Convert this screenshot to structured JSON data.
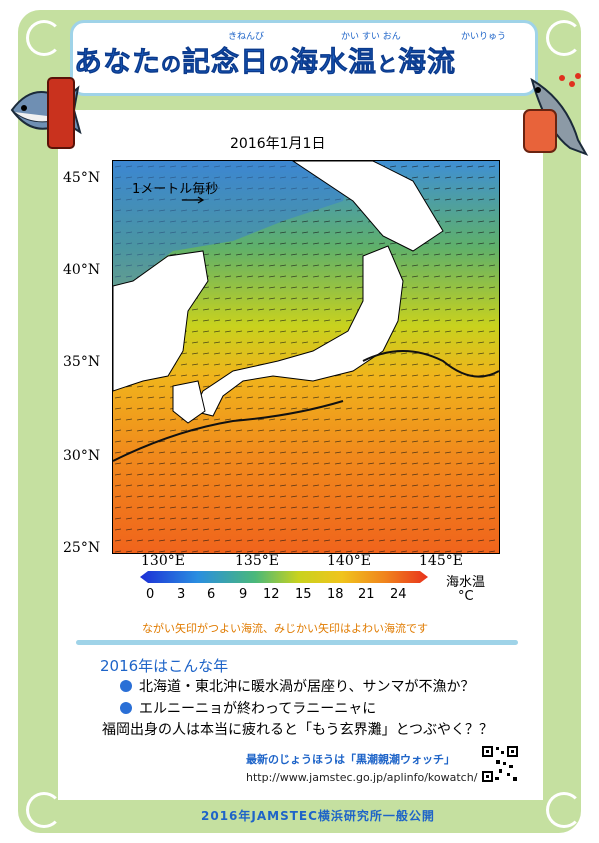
{
  "header": {
    "title_parts": [
      "あなた",
      "の",
      "記念日",
      "の",
      "海水温",
      "と",
      "海流"
    ],
    "ruby": [
      "きねんび",
      "かい すい おん",
      "かいりゅう"
    ]
  },
  "map": {
    "date": "2016年1月1日",
    "scale_label": "1メートル毎秒",
    "lat_labels": [
      "45°N",
      "40°N",
      "35°N",
      "30°N",
      "25°N"
    ],
    "lon_labels": [
      "130°E",
      "135°E",
      "140°E",
      "145°E"
    ]
  },
  "colorbar": {
    "ticks": [
      "0",
      "3",
      "6",
      "9",
      "12",
      "15",
      "18",
      "21",
      "24"
    ],
    "unit_label": "海水温",
    "unit": "°C"
  },
  "note": "ながい矢印がつよい海流、みじかい矢印はよわい海流です",
  "year_section": {
    "heading": "2016年はこんな年",
    "bullets": [
      "北海道・東北沖に暖水渦が居座り、サンマが不漁か？",
      "エルニーニョが終わってラニーニャに"
    ],
    "plain_line": "福岡出身の人は本当に疲れると「もう玄界灘」とつぶやく？？"
  },
  "links": {
    "note": "最新のじょうほうは「黒潮親潮ウォッチ」",
    "url": "http://www.jamstec.go.jp/aplinfo/kowatch/"
  },
  "footer": "2016年JAMSTEC横浜研究所一般公開",
  "colors": {
    "frame": "#c5e0a0",
    "accent": "#1e64c8",
    "divider": "#9fd3e8",
    "note": "#e07b00"
  }
}
